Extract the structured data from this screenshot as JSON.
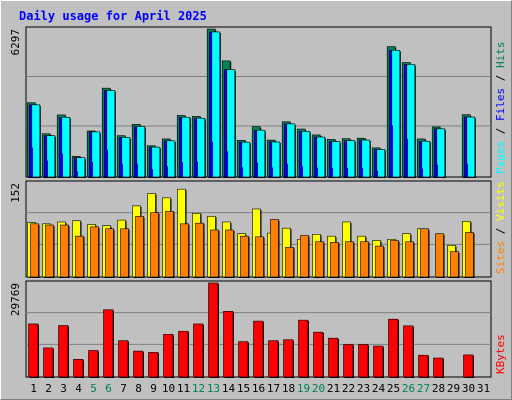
{
  "chart_data": {
    "type": "bar",
    "title": "Daily usage for April 2025",
    "categories": [
      "1",
      "2",
      "3",
      "4",
      "5",
      "6",
      "7",
      "8",
      "9",
      "10",
      "11",
      "12",
      "13",
      "14",
      "15",
      "16",
      "17",
      "18",
      "19",
      "20",
      "21",
      "22",
      "23",
      "24",
      "25",
      "26",
      "27",
      "28",
      "29",
      "30",
      "31"
    ],
    "weekend_days": [
      "5",
      "6",
      "12",
      "13",
      "19",
      "20",
      "26",
      "27"
    ],
    "panels": [
      {
        "name": "hits-files-pages",
        "ymax_label": "6297",
        "ylim": [
          0,
          6297
        ],
        "legend": [
          "Pages",
          "Files",
          "Hits"
        ],
        "series": [
          {
            "name": "Hits",
            "values": [
              3160,
              1840,
              2640,
              880,
              1960,
              3780,
              1760,
              2240,
              1330,
              1620,
              2620,
              2580,
              6297,
              4940,
              1560,
              2140,
              1570,
              2350,
              2040,
              1790,
              1600,
              1630,
              1650,
              1240,
              5550,
              4870,
              1620,
              2130,
              0,
              2650,
              0
            ]
          },
          {
            "name": "Files",
            "values": [
              3070,
              1760,
              2540,
              820,
              1920,
              3680,
              1680,
              2150,
              1270,
              1540,
              2540,
              2500,
              6170,
              4570,
              1480,
              1990,
              1490,
              2260,
              1940,
              1700,
              1510,
              1550,
              1570,
              1170,
              5390,
              4790,
              1520,
              2050,
              0,
              2550,
              0
            ]
          },
          {
            "name": "Pages",
            "values": [
              1250,
              700,
              1000,
              240,
              650,
              1160,
              550,
              560,
              330,
              450,
              630,
              650,
              1500,
              1100,
              420,
              610,
              400,
              560,
              450,
              400,
              380,
              380,
              390,
              270,
              2200,
              1620,
              360,
              520,
              0,
              560,
              0
            ]
          }
        ]
      },
      {
        "name": "visits-sites",
        "ymax_label": "152",
        "ylim": [
          0,
          152
        ],
        "legend": [
          "Sites",
          "Visits"
        ],
        "series": [
          {
            "name": "Visits",
            "values": [
              88,
              86,
              89,
              91,
              85,
              83,
              92,
              115,
              135,
              128,
              142,
              103,
              98,
              89,
              70,
              110,
              71,
              79,
              61,
              69,
              66,
              89,
              66,
              59,
              61,
              70,
              78,
              0,
              51,
              90,
              0
            ]
          },
          {
            "name": "Sites",
            "values": [
              86,
              84,
              84,
              66,
              81,
              78,
              78,
              98,
              104,
              106,
              86,
              87,
              76,
              76,
              66,
              65,
              93,
              48,
              67,
              57,
              56,
              57,
              57,
              50,
              59,
              57,
              78,
              70,
              41,
              72,
              0
            ]
          }
        ]
      },
      {
        "name": "kbytes",
        "ymax_label": "29769",
        "ylim": [
          0,
          29769
        ],
        "legend": [
          "KBytes"
        ],
        "series": [
          {
            "name": "KBytes",
            "values": [
              16800,
              9200,
              16300,
              5600,
              8400,
              21300,
              11500,
              8200,
              7800,
              13500,
              14500,
              16800,
              29769,
              20800,
              11200,
              17700,
              11500,
              11800,
              18000,
              14200,
              12300,
              10300,
              10300,
              9800,
              18300,
              16200,
              6900,
              6000,
              0,
              7000,
              0
            ]
          }
        ]
      }
    ],
    "colors": {
      "hits": "#00805c",
      "files": "#0000ff",
      "pages": "#00ffff",
      "visits": "#ffff00",
      "sites": "#ff8000",
      "kbytes": "#ff0000",
      "title": "#0000ff",
      "weekend_label": "#00805c",
      "weekday_label": "#000000"
    }
  }
}
